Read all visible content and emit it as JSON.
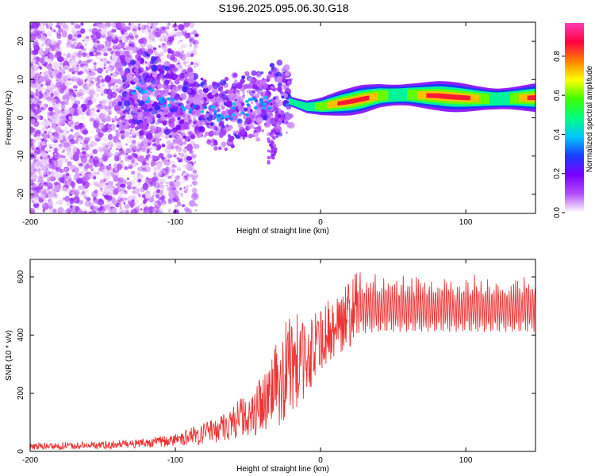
{
  "title": "S196.2025.095.06.30.G18",
  "chart_data": [
    {
      "type": "heatmap",
      "xlabel": "Height of straight line (km)",
      "ylabel": "Frequency (Hz)",
      "xlim": [
        -200,
        148
      ],
      "ylim": [
        -25,
        25
      ],
      "xticks": [
        -200,
        -100,
        0,
        100
      ],
      "yticks": [
        -20,
        -10,
        0,
        10,
        20
      ],
      "colorbar": {
        "label": "Normalized spectral amplitude",
        "range": [
          0,
          0.97
        ],
        "ticks": [
          0.0,
          0.2,
          0.4,
          0.6,
          0.8
        ],
        "stops": [
          "#ffffff",
          "#b44cff",
          "#7a00ff",
          "#1a3cff",
          "#00c8ff",
          "#00ff80",
          "#3cff00",
          "#ffff00",
          "#ff8000",
          "#ff0040",
          "#ff3cb4"
        ]
      },
      "dominant_frequency_track": [
        {
          "x": -130,
          "y": 7
        },
        {
          "x": -110,
          "y": 5
        },
        {
          "x": -90,
          "y": 3
        },
        {
          "x": -70,
          "y": 1
        },
        {
          "x": -55,
          "y": 2
        },
        {
          "x": -40,
          "y": 4
        },
        {
          "x": -25,
          "y": 5
        },
        {
          "x": -10,
          "y": 3
        },
        {
          "x": 0,
          "y": 3
        },
        {
          "x": 20,
          "y": 4
        },
        {
          "x": 40,
          "y": 5.5
        },
        {
          "x": 60,
          "y": 6
        },
        {
          "x": 80,
          "y": 6
        },
        {
          "x": 100,
          "y": 5.5
        },
        {
          "x": 120,
          "y": 5
        },
        {
          "x": 148,
          "y": 5
        }
      ]
    },
    {
      "type": "line",
      "xlabel": "Height of straight line (km)",
      "ylabel": "SNR (10 * v/v)",
      "xlim": [
        -200,
        148
      ],
      "ylim": [
        0,
        660
      ],
      "xticks": [
        -200,
        -100,
        0,
        100
      ],
      "yticks": [
        0,
        200,
        400,
        600
      ],
      "color": "#ee3333",
      "envelope": {
        "x": [
          -200,
          -150,
          -120,
          -100,
          -80,
          -60,
          -40,
          -30,
          -20,
          -10,
          0,
          10,
          20,
          25,
          40,
          60,
          80,
          100,
          120,
          148
        ],
        "low": [
          5,
          8,
          12,
          18,
          25,
          40,
          60,
          80,
          120,
          180,
          280,
          320,
          360,
          390,
          400,
          400,
          400,
          400,
          400,
          400
        ],
        "high": [
          30,
          35,
          45,
          60,
          100,
          160,
          260,
          380,
          500,
          440,
          500,
          540,
          600,
          640,
          620,
          620,
          620,
          620,
          620,
          620
        ]
      }
    }
  ]
}
